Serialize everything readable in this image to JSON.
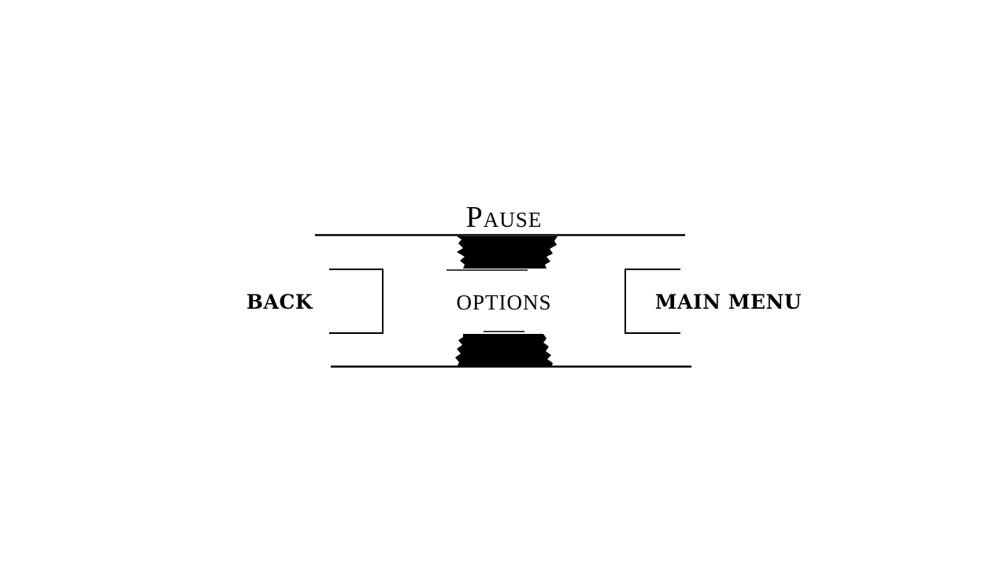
{
  "pause_menu": {
    "title": "Pause",
    "buttons": {
      "back": "BACK",
      "options": "OPTIONS",
      "main_menu": "MAIN MENU"
    }
  },
  "colors": {
    "background": "#ffffff",
    "ink": "#000000"
  }
}
